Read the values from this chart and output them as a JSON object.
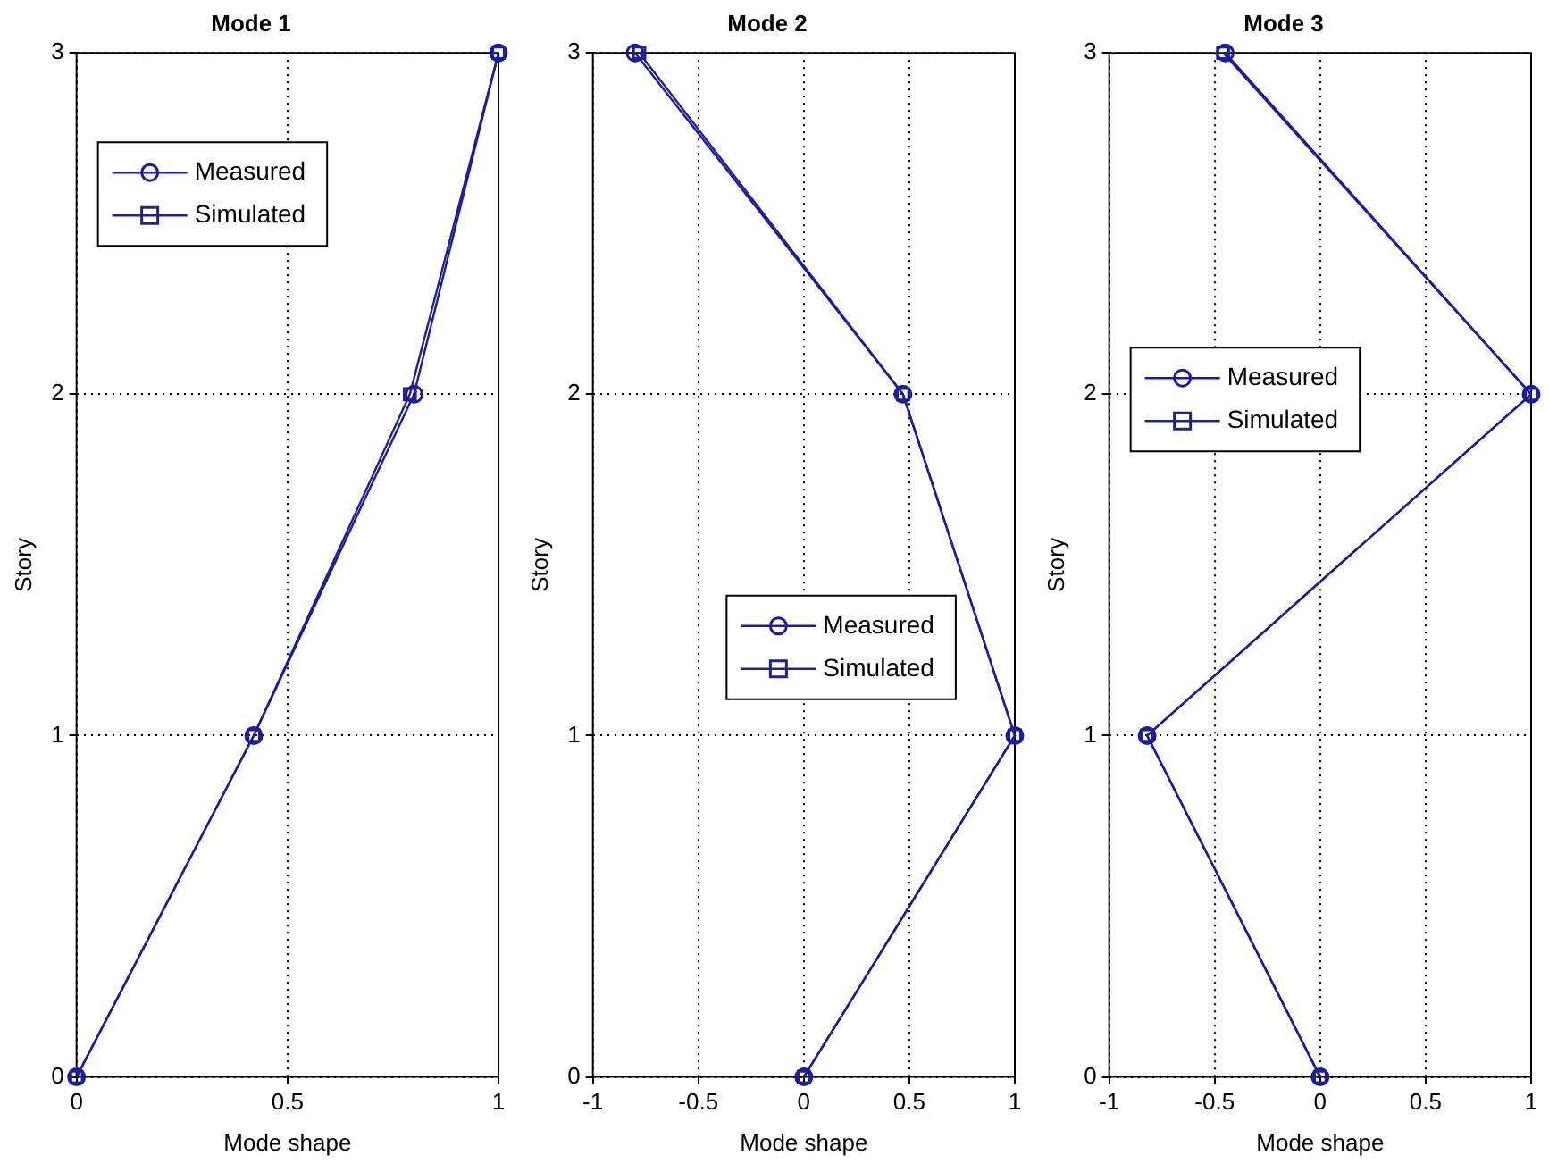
{
  "chart_data": [
    {
      "type": "line",
      "title": "Mode 1",
      "xlabel": "Mode shape",
      "ylabel": "Story",
      "xlim": [
        0,
        1
      ],
      "xticks": [
        0,
        0.5,
        1
      ],
      "ylim": [
        0,
        3
      ],
      "yticks": [
        0,
        1,
        2,
        3
      ],
      "grid": true,
      "legend": "top left",
      "series": [
        {
          "name": "Measured",
          "color": "#1a1aa6",
          "marker": "circle",
          "x": [
            0,
            0.42,
            0.8,
            1
          ],
          "values": [
            0,
            1,
            2,
            3
          ]
        },
        {
          "name": "Simulated",
          "color": "#22228a",
          "marker": "square",
          "x": [
            0,
            0.42,
            0.79,
            1
          ],
          "values": [
            0,
            1,
            2,
            3
          ]
        }
      ]
    },
    {
      "type": "line",
      "title": "Mode 2",
      "xlabel": "Mode shape",
      "ylabel": "Story",
      "xlim": [
        -1,
        1
      ],
      "xticks": [
        -1,
        -0.5,
        0,
        0.5,
        1
      ],
      "ylim": [
        0,
        3
      ],
      "yticks": [
        0,
        1,
        2,
        3
      ],
      "grid": true,
      "legend": "right",
      "series": [
        {
          "name": "Measured",
          "color": "#1a1aa6",
          "marker": "circle",
          "x": [
            0,
            1,
            0.47,
            -0.8
          ],
          "values": [
            0,
            1,
            2,
            3
          ]
        },
        {
          "name": "Simulated",
          "color": "#22228a",
          "marker": "square",
          "x": [
            0,
            1,
            0.47,
            -0.78
          ],
          "values": [
            0,
            1,
            2,
            3
          ]
        }
      ]
    },
    {
      "type": "line",
      "title": "Mode 3",
      "xlabel": "Mode shape",
      "ylabel": "Story",
      "xlim": [
        -1,
        1
      ],
      "xticks": [
        -1,
        -0.5,
        0,
        0.5,
        1
      ],
      "ylim": [
        0,
        3
      ],
      "yticks": [
        0,
        1,
        2,
        3
      ],
      "grid": true,
      "legend": "left",
      "series": [
        {
          "name": "Measured",
          "color": "#1a1aa6",
          "marker": "circle",
          "x": [
            0,
            -0.82,
            1,
            -0.45
          ],
          "values": [
            0,
            1,
            2,
            3
          ]
        },
        {
          "name": "Simulated",
          "color": "#22228a",
          "marker": "square",
          "x": [
            0,
            -0.82,
            1,
            -0.46
          ],
          "values": [
            0,
            1,
            2,
            3
          ]
        }
      ]
    }
  ]
}
